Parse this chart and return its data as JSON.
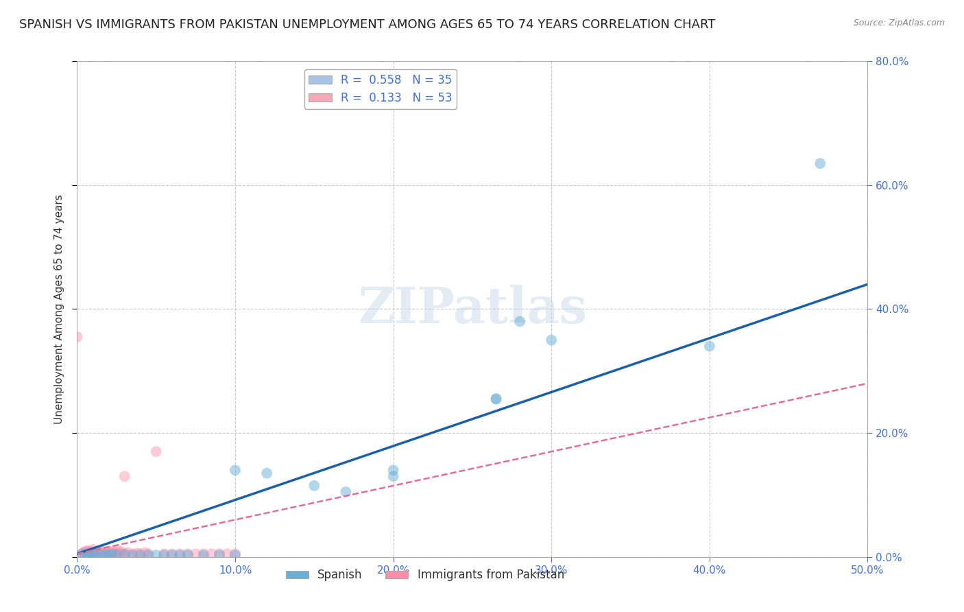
{
  "title": "SPANISH VS IMMIGRANTS FROM PAKISTAN UNEMPLOYMENT AMONG AGES 65 TO 74 YEARS CORRELATION CHART",
  "source": "Source: ZipAtlas.com",
  "ylabel_label": "Unemployment Among Ages 65 to 74 years",
  "xlim": [
    0.0,
    0.5
  ],
  "ylim": [
    0.0,
    0.8
  ],
  "legend_entries": [
    {
      "label": "R =  0.558   N = 35",
      "color": "#a8c4e8"
    },
    {
      "label": "R =  0.133   N = 53",
      "color": "#f4a8b8"
    }
  ],
  "spanish_scatter": [
    [
      0.003,
      0.005
    ],
    [
      0.005,
      0.003
    ],
    [
      0.007,
      0.005
    ],
    [
      0.008,
      0.003
    ],
    [
      0.01,
      0.004
    ],
    [
      0.012,
      0.004
    ],
    [
      0.015,
      0.003
    ],
    [
      0.018,
      0.004
    ],
    [
      0.02,
      0.003
    ],
    [
      0.022,
      0.004
    ],
    [
      0.025,
      0.004
    ],
    [
      0.03,
      0.004
    ],
    [
      0.035,
      0.003
    ],
    [
      0.04,
      0.003
    ],
    [
      0.045,
      0.003
    ],
    [
      0.05,
      0.003
    ],
    [
      0.055,
      0.003
    ],
    [
      0.06,
      0.003
    ],
    [
      0.065,
      0.003
    ],
    [
      0.07,
      0.003
    ],
    [
      0.08,
      0.003
    ],
    [
      0.09,
      0.003
    ],
    [
      0.1,
      0.003
    ],
    [
      0.1,
      0.14
    ],
    [
      0.12,
      0.135
    ],
    [
      0.15,
      0.115
    ],
    [
      0.17,
      0.105
    ],
    [
      0.2,
      0.14
    ],
    [
      0.2,
      0.13
    ],
    [
      0.265,
      0.255
    ],
    [
      0.265,
      0.255
    ],
    [
      0.28,
      0.38
    ],
    [
      0.3,
      0.35
    ],
    [
      0.4,
      0.34
    ],
    [
      0.47,
      0.635
    ]
  ],
  "pakistan_scatter": [
    [
      0.0,
      0.355
    ],
    [
      0.003,
      0.003
    ],
    [
      0.003,
      0.005
    ],
    [
      0.004,
      0.007
    ],
    [
      0.005,
      0.004
    ],
    [
      0.005,
      0.008
    ],
    [
      0.006,
      0.005
    ],
    [
      0.006,
      0.01
    ],
    [
      0.007,
      0.006
    ],
    [
      0.007,
      0.009
    ],
    [
      0.008,
      0.005
    ],
    [
      0.008,
      0.008
    ],
    [
      0.009,
      0.006
    ],
    [
      0.01,
      0.005
    ],
    [
      0.01,
      0.009
    ],
    [
      0.01,
      0.012
    ],
    [
      0.011,
      0.007
    ],
    [
      0.012,
      0.005
    ],
    [
      0.013,
      0.008
    ],
    [
      0.014,
      0.006
    ],
    [
      0.015,
      0.01
    ],
    [
      0.016,
      0.007
    ],
    [
      0.017,
      0.005
    ],
    [
      0.018,
      0.009
    ],
    [
      0.019,
      0.006
    ],
    [
      0.02,
      0.005
    ],
    [
      0.021,
      0.008
    ],
    [
      0.022,
      0.006
    ],
    [
      0.023,
      0.009
    ],
    [
      0.024,
      0.005
    ],
    [
      0.025,
      0.007
    ],
    [
      0.026,
      0.01
    ],
    [
      0.027,
      0.005
    ],
    [
      0.028,
      0.008
    ],
    [
      0.03,
      0.005
    ],
    [
      0.032,
      0.007
    ],
    [
      0.035,
      0.005
    ],
    [
      0.038,
      0.006
    ],
    [
      0.04,
      0.005
    ],
    [
      0.043,
      0.007
    ],
    [
      0.045,
      0.005
    ],
    [
      0.05,
      0.17
    ],
    [
      0.055,
      0.005
    ],
    [
      0.06,
      0.005
    ],
    [
      0.065,
      0.005
    ],
    [
      0.07,
      0.005
    ],
    [
      0.075,
      0.005
    ],
    [
      0.08,
      0.005
    ],
    [
      0.085,
      0.005
    ],
    [
      0.09,
      0.005
    ],
    [
      0.095,
      0.005
    ],
    [
      0.1,
      0.005
    ],
    [
      0.03,
      0.13
    ]
  ],
  "spanish_line": [
    [
      0.0,
      0.005
    ],
    [
      0.5,
      0.44
    ]
  ],
  "pakistan_line": [
    [
      0.0,
      0.005
    ],
    [
      0.5,
      0.28
    ]
  ],
  "scatter_size": 130,
  "spanish_color": "#6baed6",
  "pakistan_color": "#fc8fa9",
  "spanish_alpha": 0.5,
  "pakistan_alpha": 0.45,
  "line_spanish_color": "#1a5fa8",
  "line_pakistan_color": "#e07090",
  "background_color": "#ffffff",
  "grid_color": "#c8c8c8",
  "tick_color": "#4472c4",
  "title_fontsize": 13,
  "axis_label_fontsize": 11,
  "tick_fontsize": 11,
  "legend_fontsize": 12
}
